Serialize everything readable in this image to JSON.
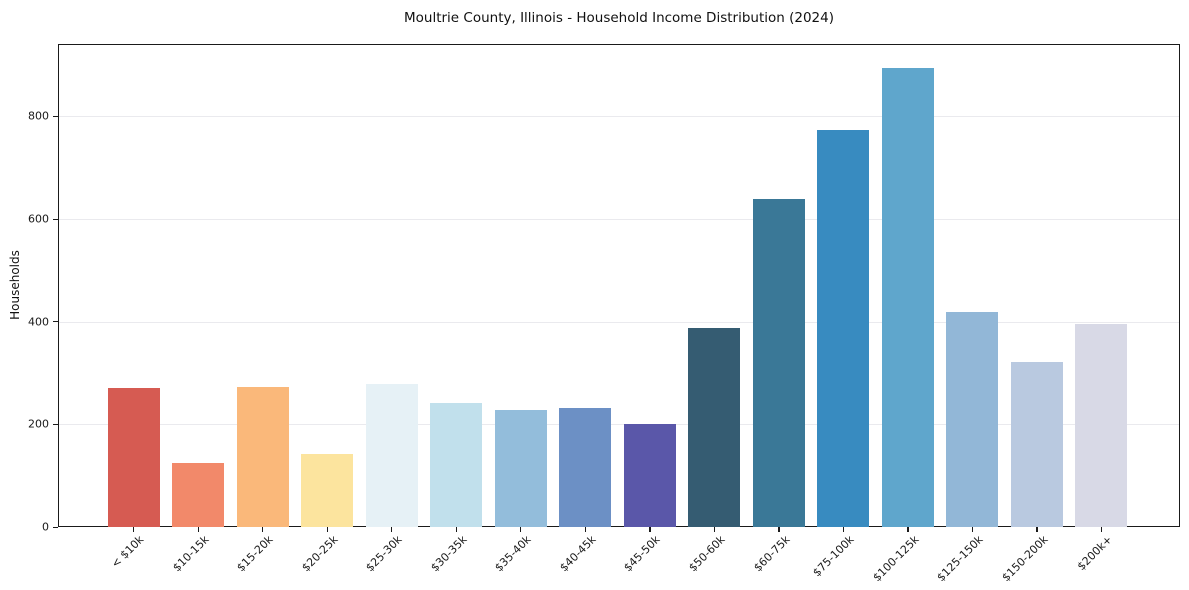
{
  "chart_data": {
    "type": "bar",
    "title": "Moultrie County, Illinois - Household Income Distribution (2024)",
    "xlabel": "",
    "ylabel": "Households",
    "categories": [
      "< $10k",
      "$10-15k",
      "$15-20k",
      "$20-25k",
      "$25-30k",
      "$30-35k",
      "$35-40k",
      "$40-45k",
      "$45-50k",
      "$50-60k",
      "$60-75k",
      "$75-100k",
      "$100-125k",
      "$125-150k",
      "$150-200k",
      "$200k+"
    ],
    "values": [
      270,
      125,
      273,
      142,
      279,
      242,
      228,
      232,
      200,
      388,
      639,
      773,
      894,
      419,
      322,
      395
    ],
    "bar_colors": [
      "#d65b52",
      "#f2896a",
      "#fab87a",
      "#fce49e",
      "#e6f1f6",
      "#c1e0ec",
      "#93bddb",
      "#6c90c5",
      "#5a57a9",
      "#355c72",
      "#3a7897",
      "#388bc0",
      "#5fa6cc",
      "#92b7d7",
      "#b9c9e0",
      "#d8d9e6"
    ],
    "yticks": [
      0,
      200,
      400,
      600,
      800
    ],
    "ylim": [
      0,
      941
    ],
    "x_tick_rotation": 45,
    "grid": "horizontal",
    "legend": "none",
    "background_color": "#ffffff",
    "grid_color": "#eaeaee",
    "spine_color": "#1a1a1a"
  }
}
